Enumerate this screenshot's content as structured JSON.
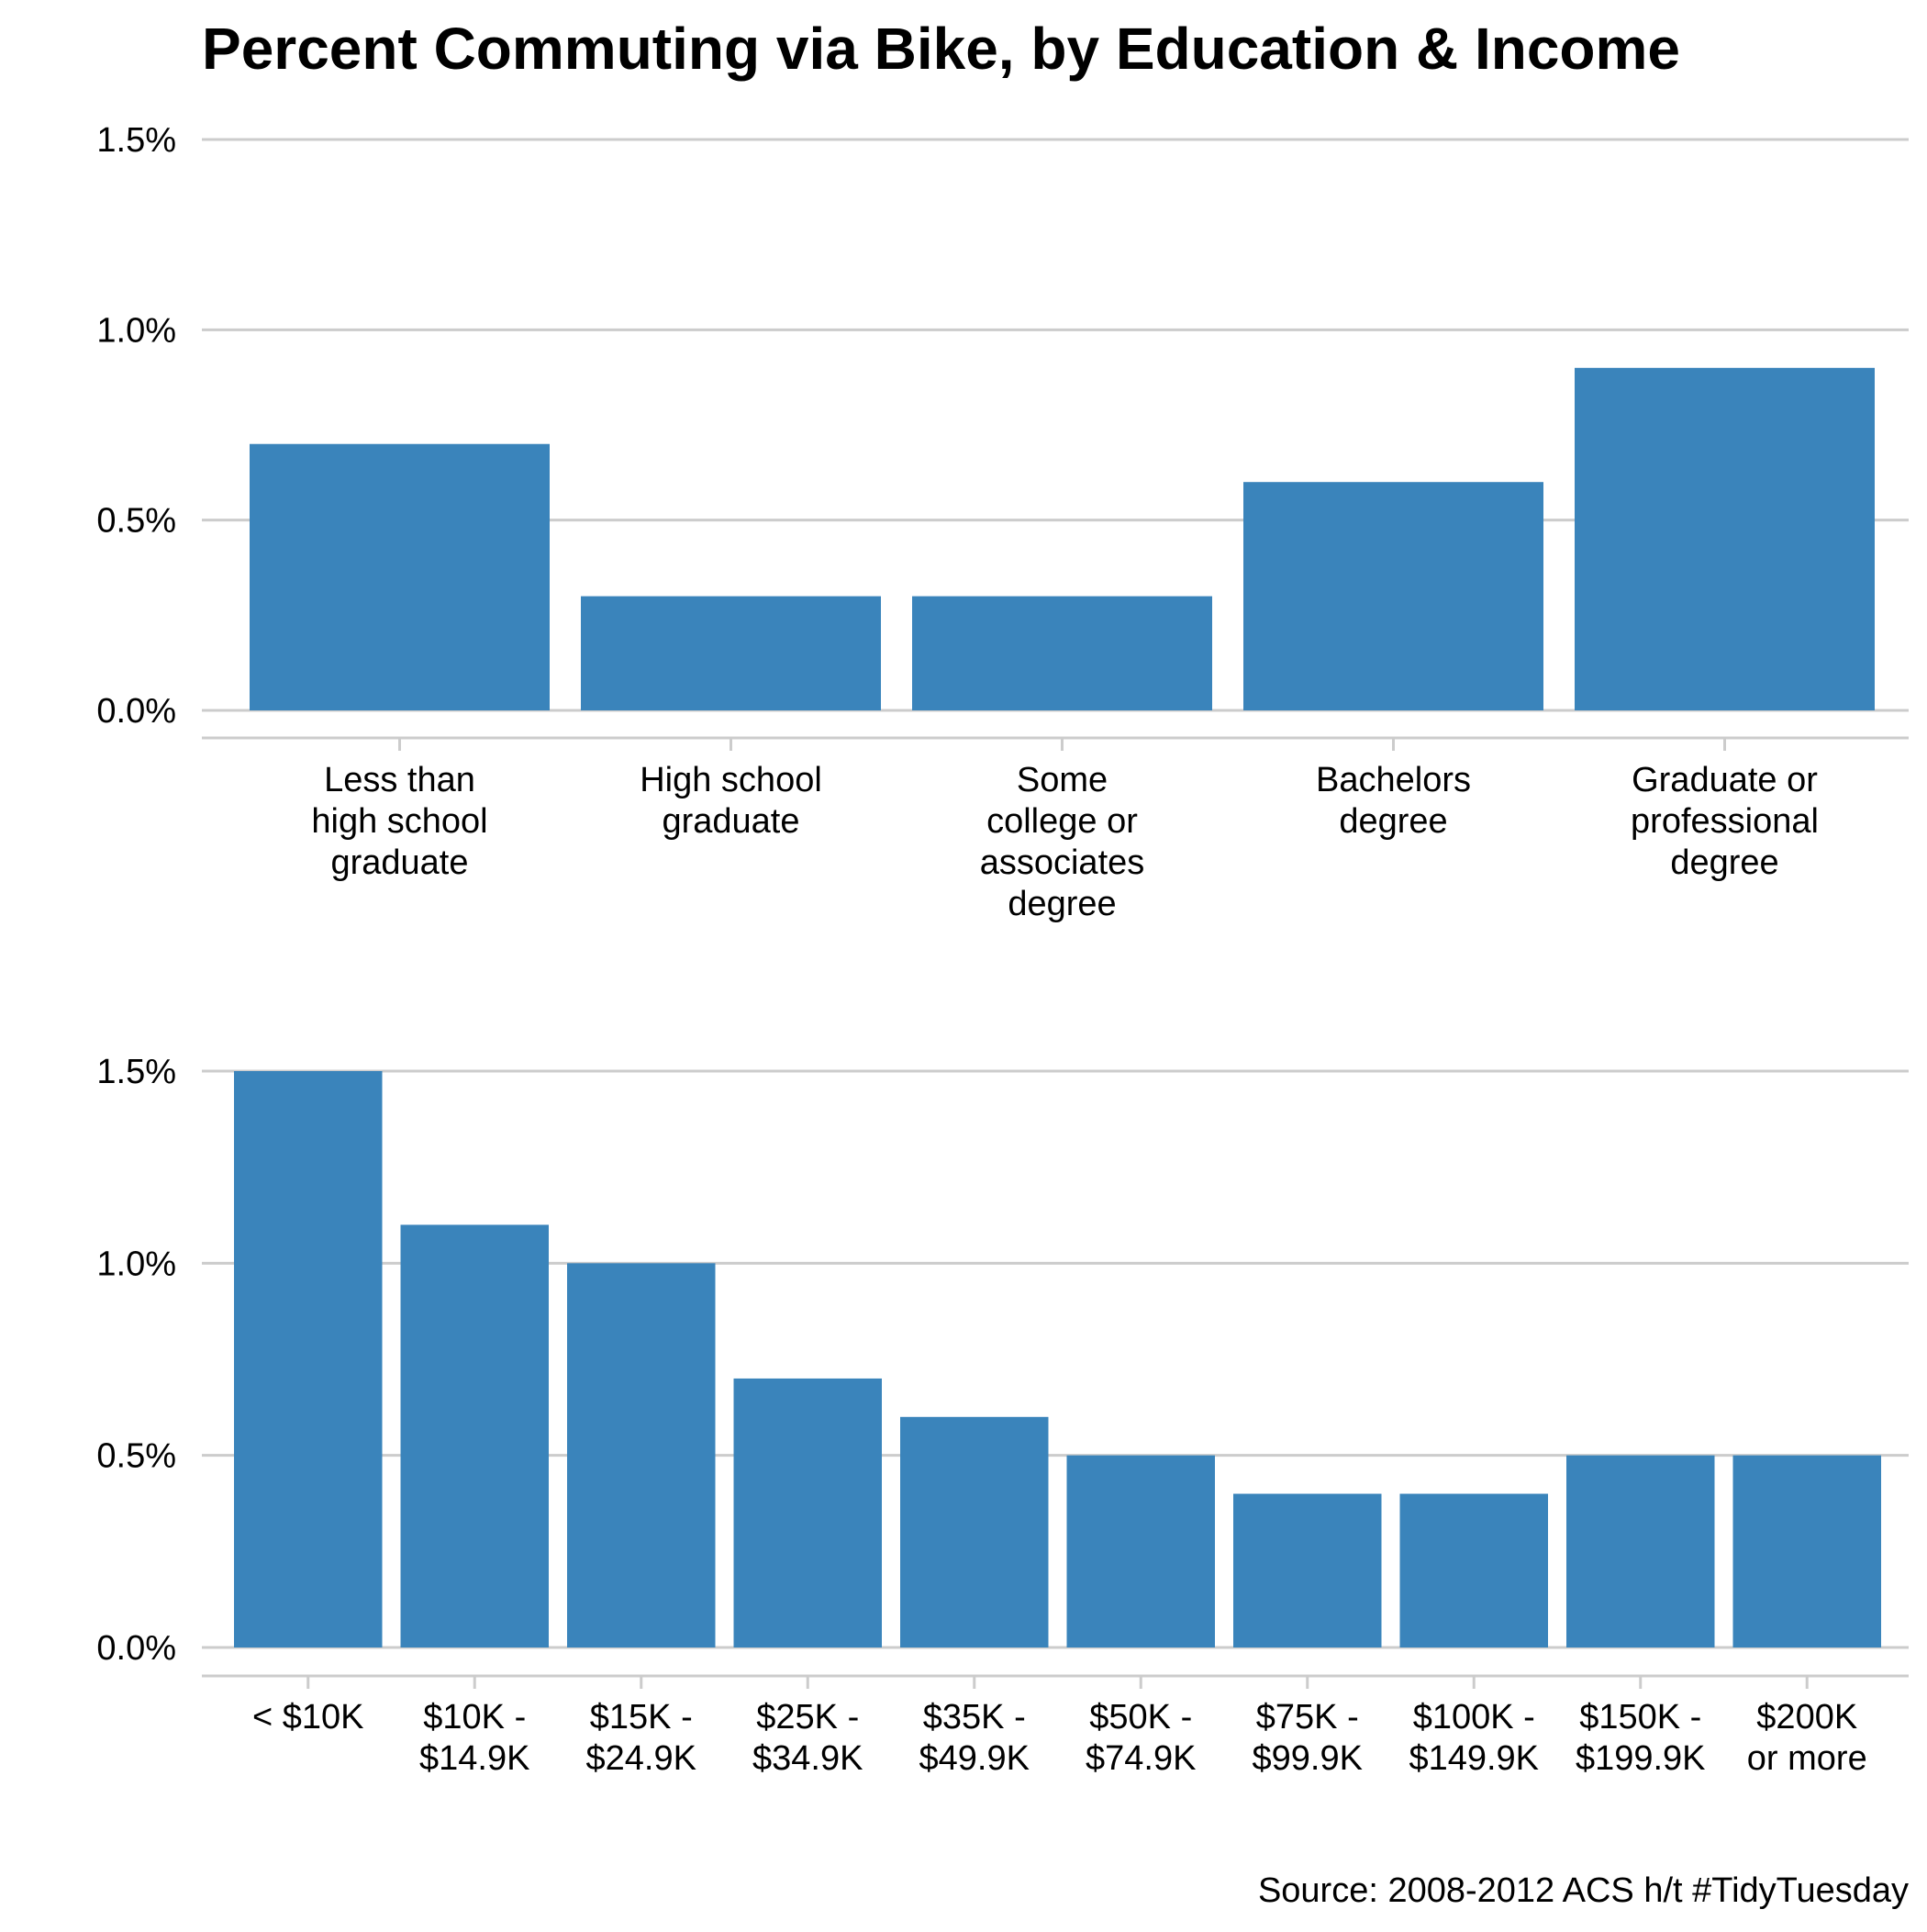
{
  "title": "Percent Commuting via Bike, by Education & Income",
  "caption": "Source: 2008-2012 ACS h/t #TidyTuesday",
  "bar_color": "#3a84bb",
  "grid_color": "#cccccc",
  "chart_data": [
    {
      "type": "bar",
      "title": "",
      "xlabel": "",
      "ylabel": "",
      "ylim": [
        0,
        1.5
      ],
      "yticks": [
        "0.0%",
        "0.5%",
        "1.0%",
        "1.5%"
      ],
      "ytick_values": [
        0,
        0.5,
        1.0,
        1.5
      ],
      "grid": true,
      "categories": [
        [
          "Less than",
          "high school",
          "graduate"
        ],
        [
          "High school",
          "graduate"
        ],
        [
          "Some",
          "college or",
          "associates",
          "degree"
        ],
        [
          "Bachelors",
          "degree"
        ],
        [
          "Graduate or",
          "professional",
          "degree"
        ]
      ],
      "values": [
        0.7,
        0.3,
        0.3,
        0.6,
        0.9
      ]
    },
    {
      "type": "bar",
      "title": "",
      "xlabel": "",
      "ylabel": "",
      "ylim": [
        0,
        1.5
      ],
      "yticks": [
        "0.0%",
        "0.5%",
        "1.0%",
        "1.5%"
      ],
      "ytick_values": [
        0,
        0.5,
        1.0,
        1.5
      ],
      "grid": true,
      "categories": [
        [
          "< $10K"
        ],
        [
          "$10K -",
          "$14.9K"
        ],
        [
          "$15K -",
          "$24.9K"
        ],
        [
          "$25K -",
          "$34.9K"
        ],
        [
          "$35K -",
          "$49.9K"
        ],
        [
          "$50K -",
          "$74.9K"
        ],
        [
          "$75K -",
          "$99.9K"
        ],
        [
          "$100K -",
          "$149.9K"
        ],
        [
          "$150K -",
          "$199.9K"
        ],
        [
          "$200K",
          "or more"
        ]
      ],
      "values": [
        1.5,
        1.1,
        1.0,
        0.7,
        0.6,
        0.5,
        0.4,
        0.4,
        0.5,
        0.5
      ]
    }
  ]
}
